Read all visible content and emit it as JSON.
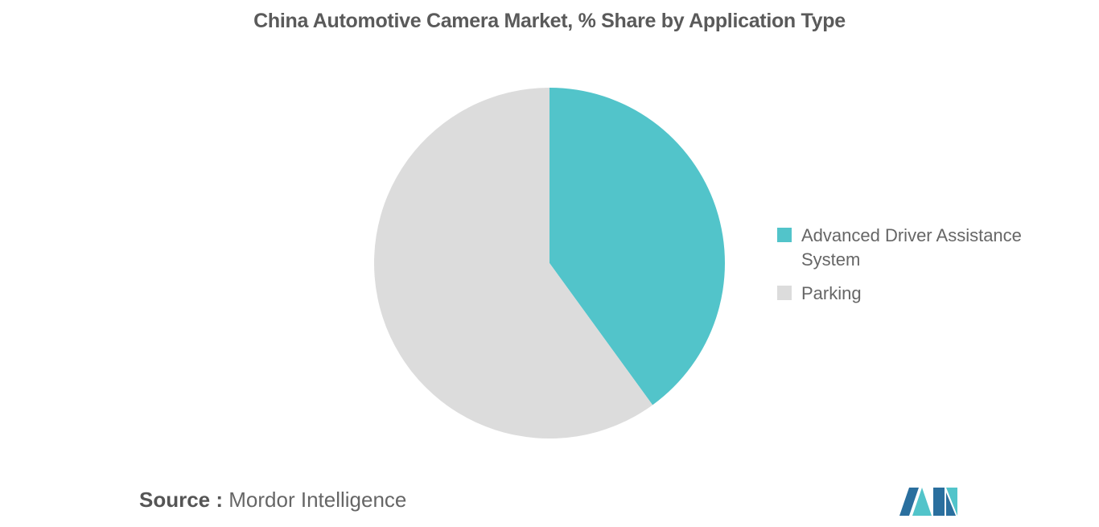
{
  "chart_data": {
    "type": "pie",
    "title": "China Automotive Camera Market, % Share by Application Type",
    "categories": [
      "Advanced Driver Assistance System",
      "Parking"
    ],
    "values": [
      40,
      60
    ],
    "colors": [
      "#52c4ca",
      "#dcdcdc"
    ],
    "source_label": "Source :",
    "source": "Mordor Intelligence"
  }
}
